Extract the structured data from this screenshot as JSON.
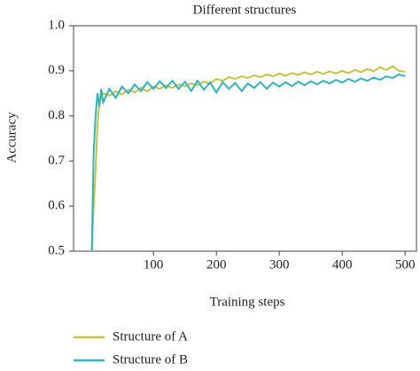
{
  "chart_data": {
    "type": "line",
    "title": "Different structures",
    "xlabel": "Training steps",
    "ylabel": "Accuracy",
    "x": [
      2,
      5,
      8,
      11,
      14,
      17,
      20,
      30,
      40,
      50,
      60,
      70,
      80,
      90,
      100,
      110,
      120,
      130,
      140,
      150,
      160,
      170,
      180,
      190,
      200,
      210,
      220,
      230,
      240,
      250,
      260,
      270,
      280,
      290,
      300,
      310,
      320,
      330,
      340,
      350,
      360,
      370,
      380,
      390,
      400,
      410,
      420,
      430,
      440,
      450,
      460,
      470,
      480,
      490,
      500
    ],
    "series": [
      {
        "name": "Structure of A",
        "color": "#c2c63a",
        "values": [
          0.5,
          0.6,
          0.68,
          0.78,
          0.83,
          0.84,
          0.85,
          0.845,
          0.855,
          0.848,
          0.858,
          0.852,
          0.862,
          0.855,
          0.865,
          0.86,
          0.868,
          0.862,
          0.87,
          0.866,
          0.872,
          0.868,
          0.876,
          0.872,
          0.882,
          0.878,
          0.886,
          0.882,
          0.888,
          0.884,
          0.89,
          0.886,
          0.892,
          0.888,
          0.894,
          0.889,
          0.895,
          0.891,
          0.897,
          0.892,
          0.898,
          0.893,
          0.899,
          0.894,
          0.9,
          0.895,
          0.902,
          0.897,
          0.904,
          0.899,
          0.908,
          0.902,
          0.91,
          0.9,
          0.898
        ]
      },
      {
        "name": "Structure of B",
        "color": "#2db6c1",
        "values": [
          0.5,
          0.72,
          0.8,
          0.85,
          0.82,
          0.86,
          0.83,
          0.86,
          0.84,
          0.865,
          0.85,
          0.87,
          0.855,
          0.875,
          0.86,
          0.877,
          0.862,
          0.878,
          0.86,
          0.876,
          0.855,
          0.878,
          0.858,
          0.874,
          0.852,
          0.875,
          0.86,
          0.873,
          0.855,
          0.872,
          0.862,
          0.875,
          0.86,
          0.874,
          0.865,
          0.875,
          0.866,
          0.876,
          0.868,
          0.877,
          0.87,
          0.878,
          0.872,
          0.88,
          0.874,
          0.882,
          0.876,
          0.883,
          0.878,
          0.885,
          0.88,
          0.888,
          0.884,
          0.892,
          0.888
        ]
      }
    ],
    "xlim": [
      -27,
      518
    ],
    "xticks": [
      100,
      200,
      300,
      400,
      500
    ],
    "ylim": [
      0.5,
      1
    ],
    "yticks": [
      0.5,
      0.6,
      0.7,
      0.8,
      0.9,
      {
        "value": 1,
        "label": "1.0"
      }
    ],
    "grid": false,
    "legend": "below"
  }
}
